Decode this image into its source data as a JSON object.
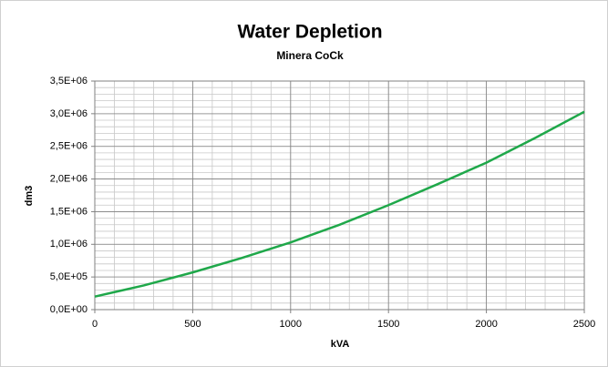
{
  "chart_data": {
    "type": "line",
    "title": "Water Depletion",
    "subtitle": "Minera CoCk",
    "xlabel": "kVA",
    "ylabel": "dm3",
    "x": [
      0,
      250,
      500,
      750,
      1000,
      1250,
      1500,
      1750,
      2000,
      2250,
      2500
    ],
    "series": [
      {
        "color": "#1fa84a",
        "values": [
          200000,
          370000,
          570000,
          790000,
          1030000,
          1300000,
          1600000,
          1920000,
          2250000,
          2630000,
          3030000
        ]
      }
    ],
    "xlim": [
      0,
      2500
    ],
    "xticks": [
      0,
      500,
      1000,
      1500,
      2000,
      2500
    ],
    "ylim": [
      0,
      3500000
    ],
    "yticks": [
      {
        "value": 0,
        "label": "0,0E+00"
      },
      {
        "value": 500000,
        "label": "5,0E+05"
      },
      {
        "value": 1000000,
        "label": "1,0E+06"
      },
      {
        "value": 1500000,
        "label": "1,5E+06"
      },
      {
        "value": 2000000,
        "label": "2,0E+06"
      },
      {
        "value": 2500000,
        "label": "2,5E+06"
      },
      {
        "value": 3000000,
        "label": "3,0E+06"
      },
      {
        "value": 3500000,
        "label": "3,5E+06"
      }
    ],
    "grid": true,
    "minor_grid": {
      "x": 100,
      "y": 100000
    }
  }
}
